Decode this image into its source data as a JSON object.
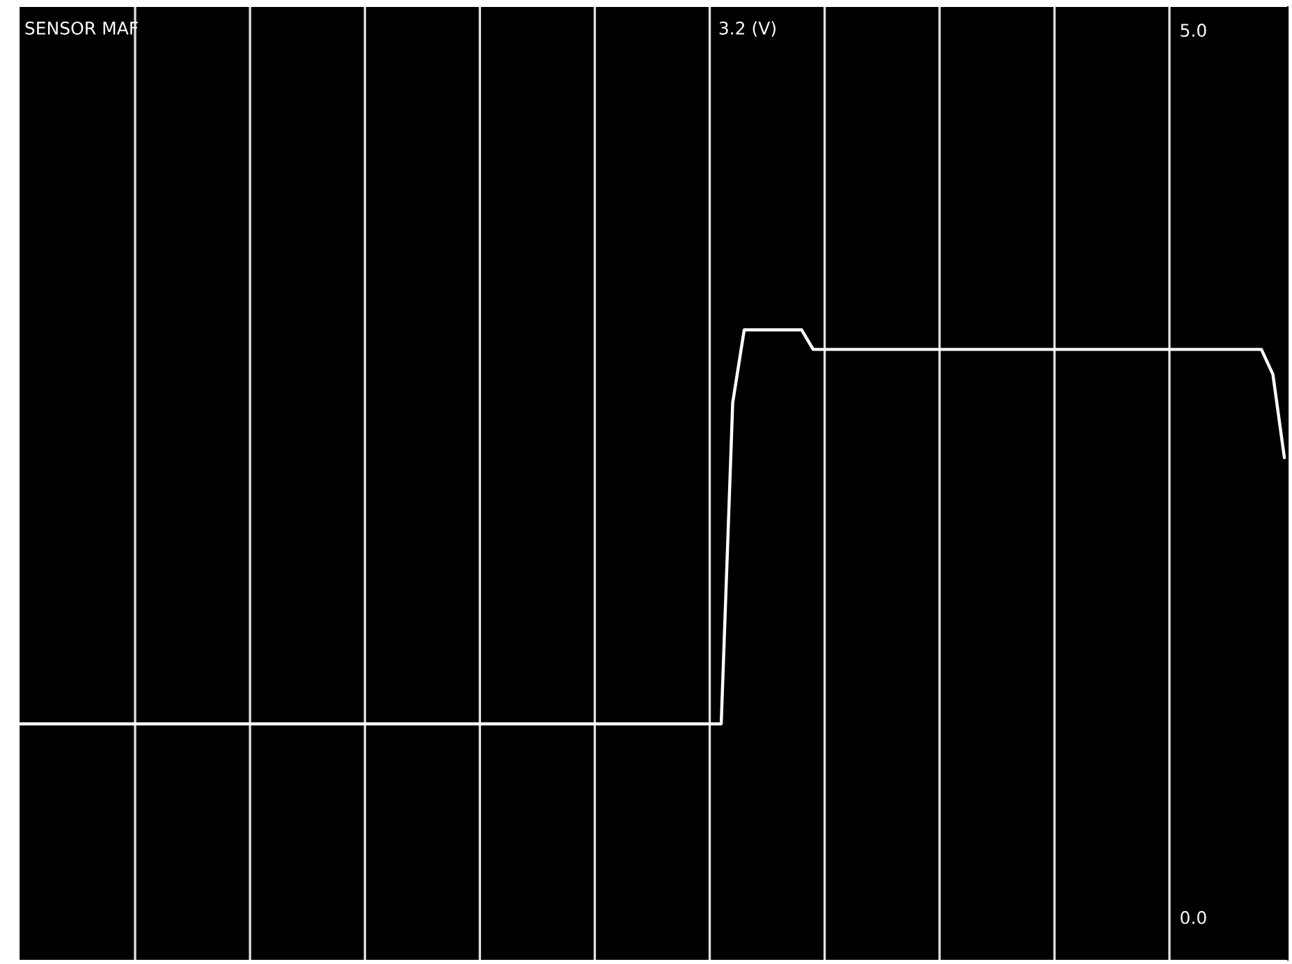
{
  "chart_data": {
    "type": "line",
    "title": "SENSOR MAF",
    "annotations": [
      "3.2 (V)"
    ],
    "categories": [
      null,
      null,
      null,
      null,
      null,
      null,
      null,
      null,
      null,
      null,
      null,
      null,
      null,
      null,
      null,
      null,
      null,
      null,
      null,
      null,
      null,
      null,
      null,
      null,
      null,
      null,
      null,
      null,
      null,
      null,
      null,
      null,
      null,
      null,
      null,
      null,
      null,
      null,
      null,
      null,
      null,
      null,
      null,
      null,
      null,
      null,
      null,
      null,
      null,
      null,
      null,
      null,
      null,
      null,
      null,
      null,
      null,
      null,
      null,
      null,
      null,
      null,
      null,
      null,
      null,
      null,
      null,
      null,
      null,
      null,
      null,
      null,
      null,
      null,
      null,
      null,
      null,
      null,
      null,
      null,
      null,
      null,
      null,
      null,
      null,
      null,
      null,
      null,
      null,
      null,
      null,
      null,
      null,
      null,
      null,
      null,
      null,
      null,
      null,
      null,
      null,
      null,
      null,
      null,
      null,
      null,
      null,
      null,
      null,
      null,
      null
    ],
    "series": [
      {
        "color": "#ffffff",
        "values": [
          1.09,
          1.09,
          1.09,
          1.09,
          1.09,
          1.09,
          1.09,
          1.09,
          1.09,
          1.09,
          1.09,
          1.09,
          1.09,
          1.09,
          1.09,
          1.09,
          1.09,
          1.09,
          1.09,
          1.09,
          1.09,
          1.09,
          1.09,
          1.09,
          1.09,
          1.09,
          1.09,
          1.09,
          1.09,
          1.09,
          1.09,
          1.09,
          1.09,
          1.09,
          1.09,
          1.09,
          1.09,
          1.09,
          1.09,
          1.09,
          1.09,
          1.09,
          1.09,
          1.09,
          1.09,
          1.09,
          1.09,
          1.09,
          1.09,
          1.09,
          1.09,
          1.09,
          1.09,
          1.09,
          1.09,
          1.09,
          1.09,
          1.09,
          1.09,
          1.09,
          1.09,
          1.09,
          2.9,
          3.31,
          3.31,
          3.31,
          3.31,
          3.31,
          3.31,
          3.2,
          3.2,
          3.2,
          3.2,
          3.2,
          3.2,
          3.2,
          3.2,
          3.2,
          3.2,
          3.2,
          3.2,
          3.2,
          3.2,
          3.2,
          3.2,
          3.2,
          3.2,
          3.2,
          3.2,
          3.2,
          3.2,
          3.2,
          3.2,
          3.2,
          3.2,
          3.2,
          3.2,
          3.2,
          3.2,
          3.2,
          3.2,
          3.2,
          3.2,
          3.2,
          3.2,
          3.2,
          3.2,
          3.2,
          3.2,
          3.06,
          2.59
        ]
      }
    ],
    "ylim": [
      -0.24,
      5.13
    ],
    "yticks": [
      {
        "value": 0,
        "label": "0.0"
      },
      {
        "value": 5,
        "label": "5.0"
      }
    ],
    "grid": "x",
    "legend": false,
    "line_style": "solid"
  }
}
